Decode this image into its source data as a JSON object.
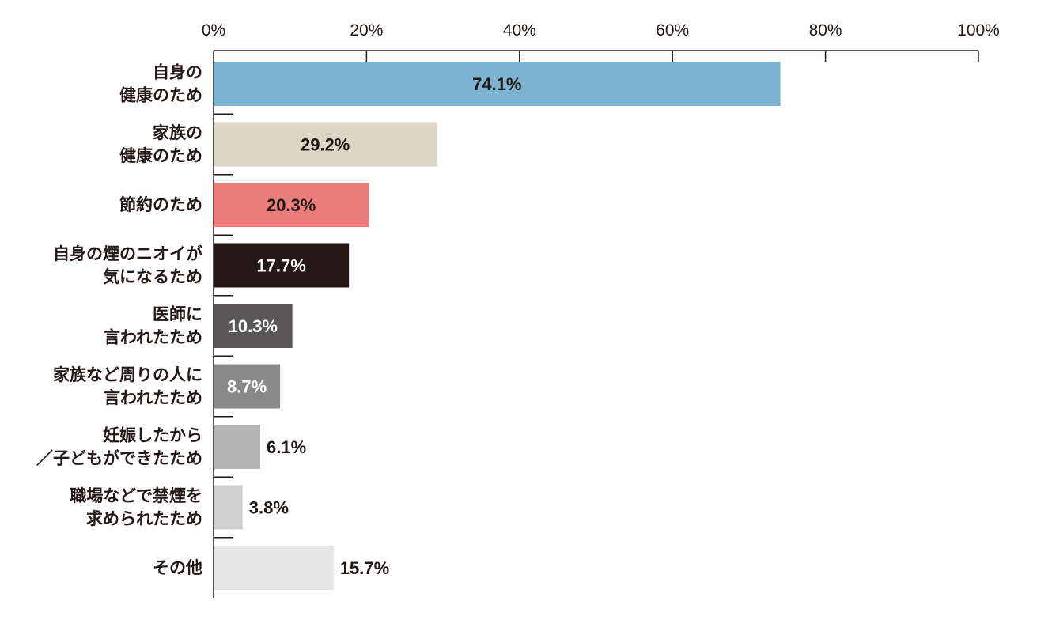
{
  "chart_data": {
    "type": "bar",
    "orientation": "horizontal",
    "title": "",
    "xlabel": "",
    "ylabel": "",
    "xlim": [
      0,
      100
    ],
    "x_ticks": [
      "0%",
      "20%",
      "40%",
      "60%",
      "80%",
      "100%"
    ],
    "grid": false,
    "legend": "none",
    "categories": [
      [
        "自身の",
        "健康のため"
      ],
      [
        "家族の",
        "健康のため"
      ],
      [
        "節約のため"
      ],
      [
        "自身の煙のニオイが",
        "気になるため"
      ],
      [
        "医師に",
        "言われたため"
      ],
      [
        "家族など周りの人に",
        "言われたため"
      ],
      [
        "妊娠したから",
        "／子どもができたため"
      ],
      [
        "職場などで禁煙を",
        "求められたため"
      ],
      [
        "その他"
      ]
    ],
    "values": [
      74.1,
      29.2,
      20.3,
      17.7,
      10.3,
      8.7,
      6.1,
      3.8,
      15.7
    ],
    "value_labels": [
      "74.1%",
      "29.2%",
      "20.3%",
      "17.7%",
      "10.3%",
      "8.7%",
      "6.1%",
      "3.8%",
      "15.7%"
    ],
    "colors": [
      "#7bb3d1",
      "#ddd6c6",
      "#ec7b7b",
      "#231815",
      "#595757",
      "#898989",
      "#b5b5b5",
      "#cfcfcf",
      "#e6e6e6"
    ],
    "label_colors": [
      "#231815",
      "#231815",
      "#231815",
      "#ffffff",
      "#ffffff",
      "#ffffff",
      "#231815",
      "#231815",
      "#231815"
    ],
    "label_inside": [
      true,
      true,
      true,
      true,
      true,
      true,
      false,
      false,
      false
    ]
  }
}
